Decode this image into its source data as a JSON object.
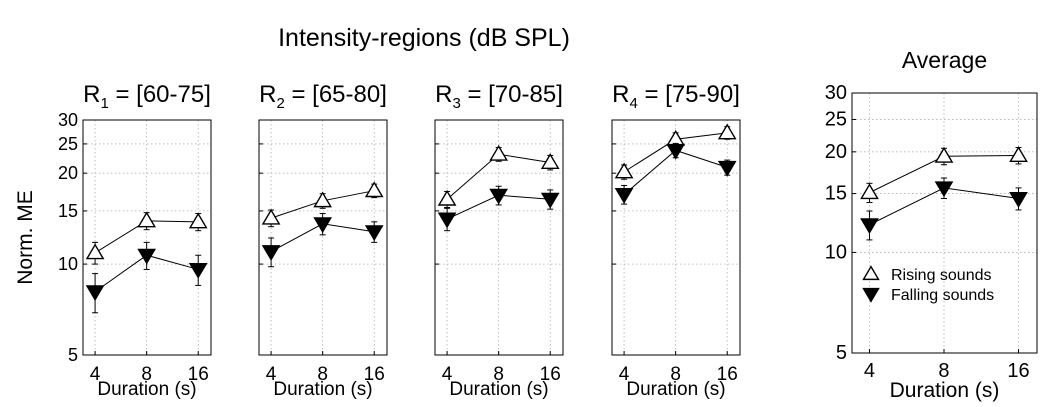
{
  "figure": {
    "suptitle": "Intensity-regions (dB SPL)"
  },
  "chart_data": [
    {
      "type": "line",
      "panel_id": "r1",
      "title": {
        "base": "R",
        "sub": "1",
        "rest": " = [60-75]"
      },
      "ylabel": "Norm. ME",
      "xlabel": "Duration (s)",
      "x_scale": "log",
      "y_scale": "log",
      "xlim": [
        3.4,
        19
      ],
      "ylim": [
        5,
        30
      ],
      "x": [
        4,
        8,
        16
      ],
      "x_ticklabels": [
        "4",
        "8",
        "16"
      ],
      "y_ticks": [
        5,
        10,
        15,
        20,
        25,
        30
      ],
      "y_ticklabels": [
        "5",
        "10",
        "15",
        "20",
        "25",
        "30"
      ],
      "grid": true,
      "series": [
        {
          "name": "Rising sounds",
          "marker": "triangle-up-open",
          "values": [
            10.9,
            13.9,
            13.8
          ],
          "err": [
            0.9,
            0.9,
            0.9
          ]
        },
        {
          "name": "Falling sounds",
          "marker": "triangle-down-filled",
          "values": [
            8.1,
            10.7,
            9.6
          ],
          "err": [
            1.2,
            1.1,
            1.1
          ]
        }
      ]
    },
    {
      "type": "line",
      "panel_id": "r2",
      "title": {
        "base": "R",
        "sub": "2",
        "rest": " = [65-80]"
      },
      "xlabel": "Duration (s)",
      "x_scale": "log",
      "y_scale": "log",
      "xlim": [
        3.4,
        19
      ],
      "ylim": [
        5,
        30
      ],
      "x": [
        4,
        8,
        16
      ],
      "x_ticklabels": [
        "4",
        "8",
        "16"
      ],
      "grid": true,
      "series": [
        {
          "name": "Rising sounds",
          "marker": "triangle-up-open",
          "values": [
            14.2,
            16.2,
            17.5
          ],
          "err": [
            0.9,
            0.9,
            0.9
          ]
        },
        {
          "name": "Falling sounds",
          "marker": "triangle-down-filled",
          "values": [
            11.0,
            13.6,
            12.8
          ],
          "err": [
            1.2,
            1.1,
            1.0
          ]
        }
      ]
    },
    {
      "type": "line",
      "panel_id": "r3",
      "title": {
        "base": "R",
        "sub": "3",
        "rest": " = [70-85]"
      },
      "xlabel": "Duration (s)",
      "x_scale": "log",
      "y_scale": "log",
      "xlim": [
        3.4,
        19
      ],
      "ylim": [
        5,
        30
      ],
      "x": [
        4,
        8,
        16
      ],
      "x_ticklabels": [
        "4",
        "8",
        "16"
      ],
      "grid": true,
      "series": [
        {
          "name": "Rising sounds",
          "marker": "triangle-up-open",
          "values": [
            16.4,
            23.1,
            21.7
          ],
          "err": [
            1.0,
            1.2,
            1.2
          ]
        },
        {
          "name": "Falling sounds",
          "marker": "triangle-down-filled",
          "values": [
            14.1,
            16.9,
            16.4
          ],
          "err": [
            1.2,
            1.2,
            1.2
          ]
        }
      ]
    },
    {
      "type": "line",
      "panel_id": "r4",
      "title": {
        "base": "R",
        "sub": "4",
        "rest": " = [75-90]"
      },
      "xlabel": "Duration (s)",
      "x_scale": "log",
      "y_scale": "log",
      "xlim": [
        3.4,
        19
      ],
      "ylim": [
        5,
        30
      ],
      "x": [
        4,
        8,
        16
      ],
      "x_ticklabels": [
        "4",
        "8",
        "16"
      ],
      "grid": true,
      "series": [
        {
          "name": "Rising sounds",
          "marker": "triangle-up-open",
          "values": [
            20.2,
            25.9,
            27.2
          ],
          "err": [
            1.1,
            1.3,
            1.3
          ]
        },
        {
          "name": "Falling sounds",
          "marker": "triangle-down-filled",
          "values": [
            17.0,
            23.8,
            20.9
          ],
          "err": [
            1.2,
            1.3,
            1.2
          ]
        }
      ]
    },
    {
      "type": "line",
      "panel_id": "avg",
      "title": {
        "base": "Average",
        "sub": "",
        "rest": ""
      },
      "xlabel": "Duration (s)",
      "x_scale": "log",
      "y_scale": "log",
      "xlim": [
        3.4,
        19
      ],
      "ylim": [
        5,
        30
      ],
      "x": [
        4,
        8,
        16
      ],
      "x_ticklabels": [
        "4",
        "8",
        "16"
      ],
      "y_ticks": [
        5,
        10,
        15,
        20,
        25,
        30
      ],
      "y_ticklabels": [
        "5",
        "10",
        "15",
        "20",
        "25",
        "30"
      ],
      "grid": true,
      "legend": {
        "position": "lower-left",
        "entries": [
          {
            "label": "Rising sounds",
            "marker": "triangle-up-open"
          },
          {
            "label": "Falling sounds",
            "marker": "triangle-down-filled"
          }
        ]
      },
      "series": [
        {
          "name": "Rising sounds",
          "marker": "triangle-up-open",
          "values": [
            15.1,
            19.4,
            19.5
          ],
          "err": [
            1.0,
            1.1,
            1.1
          ]
        },
        {
          "name": "Falling sounds",
          "marker": "triangle-down-filled",
          "values": [
            12.1,
            15.6,
            14.5
          ],
          "err": [
            1.2,
            1.1,
            1.1
          ]
        }
      ]
    }
  ]
}
